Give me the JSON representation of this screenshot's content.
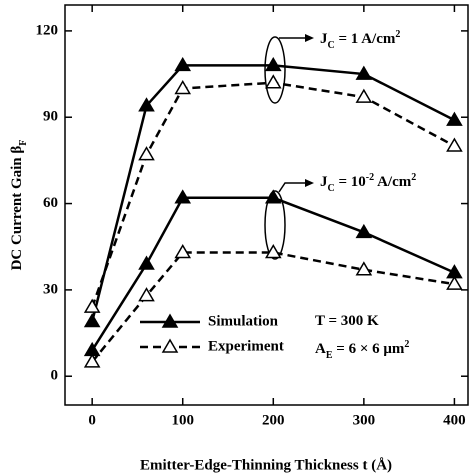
{
  "chart_data": {
    "type": "line",
    "x_label": "Emitter-Edge-Thinning Thickness t (Å)",
    "y_label": [
      {
        "t": "DC Current Gain β",
        "s": "normal"
      },
      {
        "t": "F",
        "s": "sub"
      }
    ],
    "x": [
      0,
      60,
      100,
      200,
      300,
      400
    ],
    "legend": [
      {
        "name": "Simulation",
        "dashed": false,
        "marker": "filled"
      },
      {
        "name": "Experiment",
        "dashed": true,
        "marker": "open"
      }
    ],
    "series": [
      {
        "style": 0,
        "color": "#000000",
        "values": [
          19,
          94,
          108,
          108,
          105,
          89
        ]
      },
      {
        "style": 1,
        "color": "#000000",
        "values": [
          24,
          77,
          100,
          102,
          97,
          80
        ]
      },
      {
        "style": 0,
        "color": "#000000",
        "values": [
          9,
          39,
          62,
          62,
          50,
          36
        ]
      },
      {
        "style": 1,
        "color": "#000000",
        "values": [
          5,
          28,
          43,
          43,
          37,
          32
        ]
      }
    ],
    "annotations": [
      [
        {
          "t": "J",
          "s": "normal"
        },
        {
          "t": "C",
          "s": "sub"
        },
        {
          "t": " = 1 A/cm",
          "s": "normal"
        },
        {
          "t": "2",
          "s": "sup"
        }
      ],
      [
        {
          "t": "J",
          "s": "normal"
        },
        {
          "t": "C",
          "s": "sub"
        },
        {
          "t": " = 10",
          "s": "normal"
        },
        {
          "t": "-2",
          "s": "sup"
        },
        {
          "t": " A/cm",
          "s": "normal"
        },
        {
          "t": "2",
          "s": "sup"
        }
      ],
      [
        {
          "t": "T = 300 K",
          "s": "normal"
        }
      ],
      [
        {
          "t": "A",
          "s": "normal"
        },
        {
          "t": "E",
          "s": "sub"
        },
        {
          "t": " = 6 × 6 μm",
          "s": "normal"
        },
        {
          "t": "2",
          "s": "sup"
        }
      ]
    ],
    "xlim": [
      -30,
      415
    ],
    "ylim": [
      -10,
      129
    ],
    "xticks": [
      0,
      100,
      200,
      300,
      400
    ],
    "yticks": [
      0,
      30,
      60,
      90,
      120
    ]
  }
}
